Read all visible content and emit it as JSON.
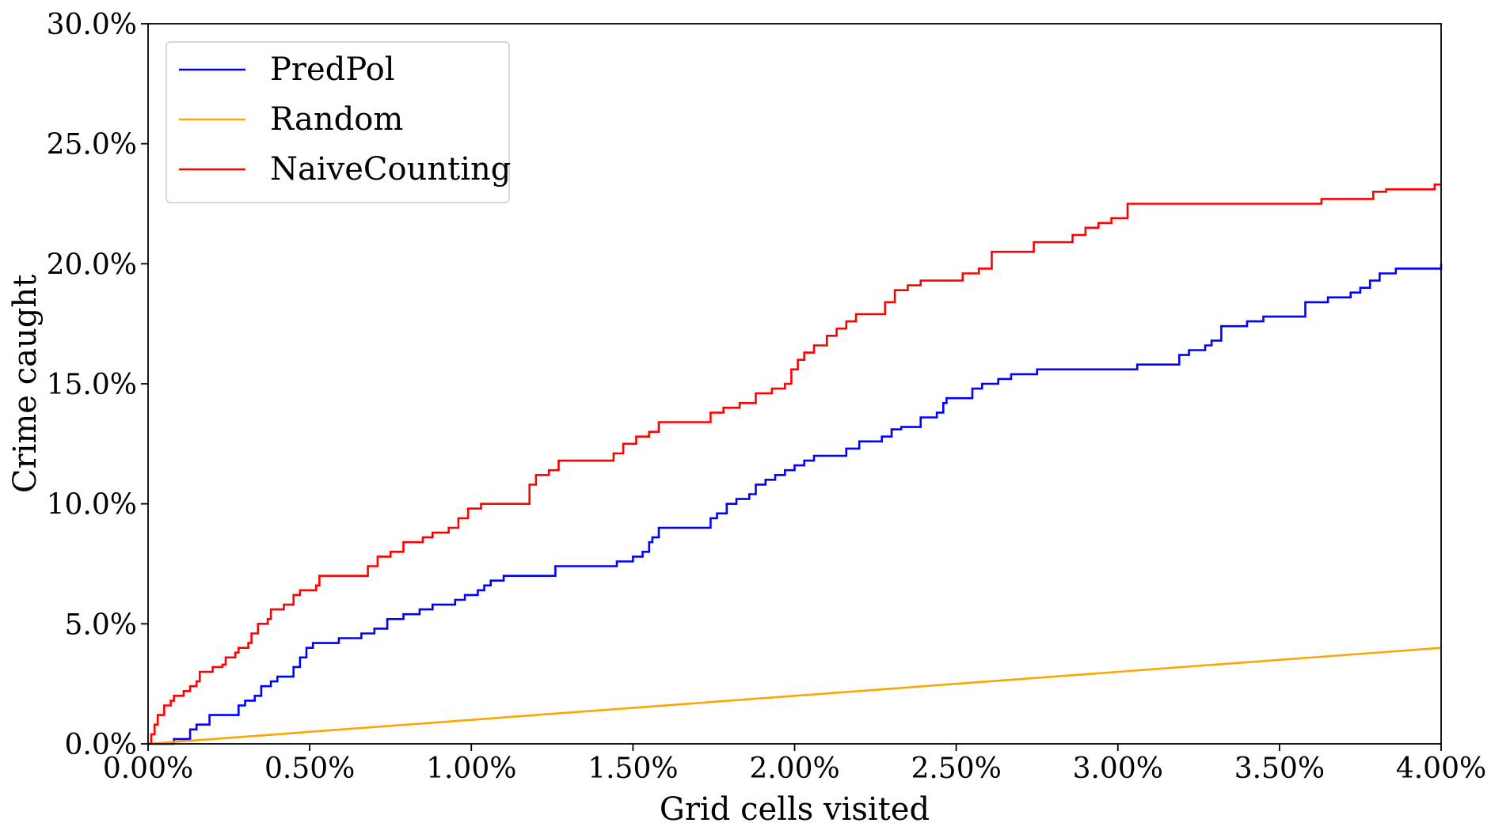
{
  "chart_data": {
    "type": "line",
    "xlabel": "Grid cells visited",
    "ylabel": "Crime caught",
    "xlim": [
      0,
      4.0
    ],
    "ylim": [
      0,
      30.0
    ],
    "x_unit": "%",
    "y_unit": "%",
    "x_ticks": [
      "0.00%",
      "0.50%",
      "1.00%",
      "1.50%",
      "2.00%",
      "2.50%",
      "3.00%",
      "3.50%",
      "4.00%"
    ],
    "y_ticks": [
      "0.0%",
      "5.0%",
      "10.0%",
      "15.0%",
      "20.0%",
      "25.0%",
      "30.0%"
    ],
    "legend_position": "top-left",
    "grid": false,
    "series": [
      {
        "name": "PredPol",
        "color": "#0000ff",
        "step": true,
        "points": [
          [
            0.0,
            0.0
          ],
          [
            0.08,
            0.2
          ],
          [
            0.12,
            0.2
          ],
          [
            0.13,
            0.6
          ],
          [
            0.15,
            0.8
          ],
          [
            0.18,
            0.8
          ],
          [
            0.19,
            1.2
          ],
          [
            0.27,
            1.2
          ],
          [
            0.28,
            1.6
          ],
          [
            0.3,
            1.8
          ],
          [
            0.33,
            2.0
          ],
          [
            0.35,
            2.4
          ],
          [
            0.38,
            2.6
          ],
          [
            0.4,
            2.8
          ],
          [
            0.44,
            2.8
          ],
          [
            0.45,
            3.2
          ],
          [
            0.47,
            3.6
          ],
          [
            0.49,
            4.0
          ],
          [
            0.51,
            4.2
          ],
          [
            0.58,
            4.2
          ],
          [
            0.59,
            4.4
          ],
          [
            0.65,
            4.4
          ],
          [
            0.66,
            4.6
          ],
          [
            0.7,
            4.8
          ],
          [
            0.74,
            5.2
          ],
          [
            0.79,
            5.4
          ],
          [
            0.84,
            5.6
          ],
          [
            0.88,
            5.8
          ],
          [
            0.95,
            6.0
          ],
          [
            0.98,
            6.2
          ],
          [
            1.02,
            6.4
          ],
          [
            1.04,
            6.6
          ],
          [
            1.06,
            6.8
          ],
          [
            1.1,
            7.0
          ],
          [
            1.25,
            7.0
          ],
          [
            1.26,
            7.4
          ],
          [
            1.44,
            7.4
          ],
          [
            1.45,
            7.6
          ],
          [
            1.49,
            7.6
          ],
          [
            1.5,
            7.8
          ],
          [
            1.53,
            8.0
          ],
          [
            1.55,
            8.4
          ],
          [
            1.56,
            8.6
          ],
          [
            1.58,
            9.0
          ],
          [
            1.7,
            9.0
          ],
          [
            1.74,
            9.4
          ],
          [
            1.76,
            9.6
          ],
          [
            1.79,
            10.0
          ],
          [
            1.82,
            10.2
          ],
          [
            1.86,
            10.4
          ],
          [
            1.88,
            10.8
          ],
          [
            1.91,
            11.0
          ],
          [
            1.94,
            11.2
          ],
          [
            1.97,
            11.4
          ],
          [
            2.0,
            11.6
          ],
          [
            2.03,
            11.8
          ],
          [
            2.06,
            12.0
          ],
          [
            2.15,
            12.0
          ],
          [
            2.16,
            12.3
          ],
          [
            2.2,
            12.6
          ],
          [
            2.27,
            12.8
          ],
          [
            2.3,
            13.1
          ],
          [
            2.33,
            13.2
          ],
          [
            2.38,
            13.2
          ],
          [
            2.39,
            13.6
          ],
          [
            2.44,
            13.8
          ],
          [
            2.46,
            14.2
          ],
          [
            2.47,
            14.4
          ],
          [
            2.53,
            14.4
          ],
          [
            2.55,
            14.8
          ],
          [
            2.58,
            15.0
          ],
          [
            2.63,
            15.2
          ],
          [
            2.67,
            15.4
          ],
          [
            2.75,
            15.6
          ],
          [
            3.05,
            15.6
          ],
          [
            3.06,
            15.8
          ],
          [
            3.16,
            15.8
          ],
          [
            3.19,
            16.2
          ],
          [
            3.22,
            16.4
          ],
          [
            3.25,
            16.4
          ],
          [
            3.27,
            16.6
          ],
          [
            3.29,
            16.8
          ],
          [
            3.32,
            17.4
          ],
          [
            3.38,
            17.4
          ],
          [
            3.4,
            17.6
          ],
          [
            3.45,
            17.8
          ],
          [
            3.56,
            17.8
          ],
          [
            3.58,
            18.4
          ],
          [
            3.65,
            18.6
          ],
          [
            3.7,
            18.6
          ],
          [
            3.72,
            18.8
          ],
          [
            3.75,
            19.0
          ],
          [
            3.78,
            19.3
          ],
          [
            3.81,
            19.6
          ],
          [
            3.84,
            19.6
          ],
          [
            3.86,
            19.8
          ],
          [
            3.98,
            19.8
          ],
          [
            4.0,
            20.0
          ]
        ]
      },
      {
        "name": "Random",
        "color": "#ffa500",
        "step": false,
        "points": [
          [
            0.0,
            0.0
          ],
          [
            4.0,
            4.0
          ]
        ]
      },
      {
        "name": "NaiveCounting",
        "color": "#ff0000",
        "step": true,
        "points": [
          [
            0.0,
            0.0
          ],
          [
            0.01,
            0.4
          ],
          [
            0.02,
            0.8
          ],
          [
            0.03,
            1.2
          ],
          [
            0.05,
            1.6
          ],
          [
            0.07,
            1.8
          ],
          [
            0.08,
            2.0
          ],
          [
            0.11,
            2.2
          ],
          [
            0.13,
            2.4
          ],
          [
            0.15,
            2.6
          ],
          [
            0.16,
            3.0
          ],
          [
            0.19,
            3.0
          ],
          [
            0.2,
            3.2
          ],
          [
            0.23,
            3.3
          ],
          [
            0.24,
            3.6
          ],
          [
            0.27,
            3.8
          ],
          [
            0.28,
            4.0
          ],
          [
            0.31,
            4.2
          ],
          [
            0.32,
            4.6
          ],
          [
            0.34,
            5.0
          ],
          [
            0.37,
            5.2
          ],
          [
            0.38,
            5.6
          ],
          [
            0.42,
            5.8
          ],
          [
            0.45,
            6.2
          ],
          [
            0.47,
            6.4
          ],
          [
            0.52,
            6.6
          ],
          [
            0.53,
            7.0
          ],
          [
            0.67,
            7.0
          ],
          [
            0.68,
            7.4
          ],
          [
            0.71,
            7.8
          ],
          [
            0.75,
            8.0
          ],
          [
            0.79,
            8.4
          ],
          [
            0.85,
            8.6
          ],
          [
            0.88,
            8.8
          ],
          [
            0.93,
            9.0
          ],
          [
            0.96,
            9.4
          ],
          [
            0.99,
            9.8
          ],
          [
            1.03,
            10.0
          ],
          [
            1.16,
            10.0
          ],
          [
            1.18,
            10.8
          ],
          [
            1.2,
            11.2
          ],
          [
            1.24,
            11.4
          ],
          [
            1.27,
            11.8
          ],
          [
            1.41,
            11.8
          ],
          [
            1.44,
            12.1
          ],
          [
            1.47,
            12.5
          ],
          [
            1.51,
            12.8
          ],
          [
            1.55,
            13.0
          ],
          [
            1.58,
            13.4
          ],
          [
            1.72,
            13.4
          ],
          [
            1.74,
            13.8
          ],
          [
            1.78,
            14.0
          ],
          [
            1.83,
            14.2
          ],
          [
            1.88,
            14.6
          ],
          [
            1.93,
            14.8
          ],
          [
            1.97,
            15.0
          ],
          [
            1.99,
            15.6
          ],
          [
            2.01,
            16.0
          ],
          [
            2.03,
            16.3
          ],
          [
            2.06,
            16.6
          ],
          [
            2.1,
            17.0
          ],
          [
            2.13,
            17.3
          ],
          [
            2.16,
            17.6
          ],
          [
            2.19,
            17.9
          ],
          [
            2.26,
            17.9
          ],
          [
            2.28,
            18.4
          ],
          [
            2.31,
            18.9
          ],
          [
            2.35,
            19.1
          ],
          [
            2.39,
            19.3
          ],
          [
            2.49,
            19.3
          ],
          [
            2.52,
            19.6
          ],
          [
            2.57,
            19.8
          ],
          [
            2.61,
            20.5
          ],
          [
            2.72,
            20.5
          ],
          [
            2.74,
            20.9
          ],
          [
            2.84,
            20.9
          ],
          [
            2.86,
            21.2
          ],
          [
            2.9,
            21.5
          ],
          [
            2.94,
            21.7
          ],
          [
            2.98,
            21.9
          ],
          [
            3.03,
            22.5
          ],
          [
            3.6,
            22.5
          ],
          [
            3.63,
            22.7
          ],
          [
            3.77,
            22.7
          ],
          [
            3.79,
            23.0
          ],
          [
            3.83,
            23.1
          ],
          [
            3.96,
            23.1
          ],
          [
            3.98,
            23.3
          ],
          [
            4.0,
            23.3
          ]
        ]
      }
    ]
  }
}
